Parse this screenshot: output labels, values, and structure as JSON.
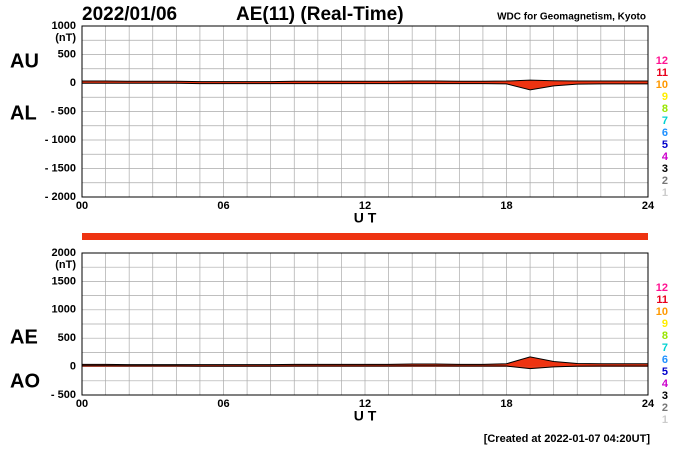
{
  "header": {
    "date": "2022/01/06",
    "title": "AE(11) (Real-Time)",
    "source": "WDC for Geomagnetism, Kyoto"
  },
  "footer": "[Created at 2022-01-07 04:20UT]",
  "station_counts": [
    {
      "label": 12,
      "color": "#ff1493"
    },
    {
      "label": 11,
      "color": "#e8001c"
    },
    {
      "label": 10,
      "color": "#ff9900"
    },
    {
      "label": 9,
      "color": "#ffee00"
    },
    {
      "label": 8,
      "color": "#99e600"
    },
    {
      "label": 7,
      "color": "#00d2d2"
    },
    {
      "label": 6,
      "color": "#1e90ff"
    },
    {
      "label": 5,
      "color": "#0000cc"
    },
    {
      "label": 4,
      "color": "#cc00cc"
    },
    {
      "label": 3,
      "color": "#000000"
    },
    {
      "label": 2,
      "color": "#777777"
    },
    {
      "label": 1,
      "color": "#cccccc"
    }
  ],
  "chart_data": [
    {
      "type": "line",
      "unit": "(nT)",
      "xlabel": "U T",
      "fill_color": "#ee3311",
      "line_color": "#000000",
      "xlim": [
        0,
        24
      ],
      "xticks": [
        {
          "value": 0,
          "label": "00"
        },
        {
          "value": 6,
          "label": "06"
        },
        {
          "value": 12,
          "label": "12"
        },
        {
          "value": 18,
          "label": "18"
        },
        {
          "value": 24,
          "label": "24"
        }
      ],
      "xgrid": [
        1,
        2,
        3,
        4,
        5,
        7,
        8,
        9,
        10,
        11,
        13,
        14,
        15,
        16,
        17,
        19,
        20,
        21,
        22,
        23
      ],
      "ylim": [
        -2000,
        1000
      ],
      "yticks": [
        {
          "value": 1000,
          "label": "1000"
        },
        {
          "value": 500,
          "label": "500"
        },
        0,
        {
          "value": -500,
          "label": "- 500"
        },
        {
          "value": -1000,
          "label": "- 1000"
        },
        {
          "value": -1500,
          "label": "- 1500"
        },
        {
          "value": -2000,
          "label": "- 2000"
        }
      ],
      "ygrid": [
        750,
        250,
        -250,
        -750,
        -1250,
        -1750
      ],
      "x": [
        0,
        1,
        2,
        3,
        4,
        5,
        6,
        7,
        8,
        9,
        10,
        11,
        12,
        13,
        14,
        15,
        16,
        17,
        18,
        19,
        20,
        21,
        22,
        23,
        24
      ],
      "series": [
        {
          "name": "AU",
          "values": [
            35,
            35,
            30,
            30,
            30,
            25,
            25,
            25,
            25,
            30,
            30,
            30,
            30,
            30,
            35,
            35,
            30,
            30,
            35,
            50,
            40,
            35,
            35,
            35,
            35
          ]
        },
        {
          "name": "AL",
          "values": [
            -5,
            -5,
            -5,
            -5,
            -5,
            -10,
            -10,
            -10,
            -10,
            -10,
            -10,
            -10,
            -10,
            -10,
            -10,
            -10,
            -10,
            -10,
            -15,
            -120,
            -50,
            -20,
            -15,
            -15,
            -15
          ]
        }
      ]
    },
    {
      "type": "line",
      "unit": "(nT)",
      "xlabel": "U T",
      "fill_color": "#ee3311",
      "line_color": "#000000",
      "xlim": [
        0,
        24
      ],
      "xticks": [
        {
          "value": 0,
          "label": "00"
        },
        {
          "value": 6,
          "label": "06"
        },
        {
          "value": 12,
          "label": "12"
        },
        {
          "value": 18,
          "label": "18"
        },
        {
          "value": 24,
          "label": "24"
        }
      ],
      "xgrid": [
        1,
        2,
        3,
        4,
        5,
        7,
        8,
        9,
        10,
        11,
        13,
        14,
        15,
        16,
        17,
        19,
        20,
        21,
        22,
        23
      ],
      "ylim": [
        -500,
        2000
      ],
      "yticks": [
        2000,
        1500,
        1000,
        500,
        0,
        {
          "value": -500,
          "label": "- 500"
        }
      ],
      "ygrid": [
        1750,
        1250,
        750,
        250,
        -250
      ],
      "x": [
        0,
        1,
        2,
        3,
        4,
        5,
        6,
        7,
        8,
        9,
        10,
        11,
        12,
        13,
        14,
        15,
        16,
        17,
        18,
        19,
        20,
        21,
        22,
        23,
        24
      ],
      "series": [
        {
          "name": "AE",
          "values": [
            40,
            40,
            35,
            35,
            35,
            35,
            35,
            35,
            35,
            40,
            40,
            40,
            40,
            40,
            45,
            45,
            40,
            40,
            50,
            170,
            90,
            55,
            50,
            50,
            50
          ]
        },
        {
          "name": "AO",
          "values": [
            15,
            15,
            12,
            12,
            12,
            8,
            8,
            8,
            8,
            10,
            10,
            10,
            10,
            10,
            12,
            12,
            10,
            10,
            10,
            -35,
            -5,
            8,
            10,
            10,
            10
          ]
        }
      ]
    }
  ]
}
